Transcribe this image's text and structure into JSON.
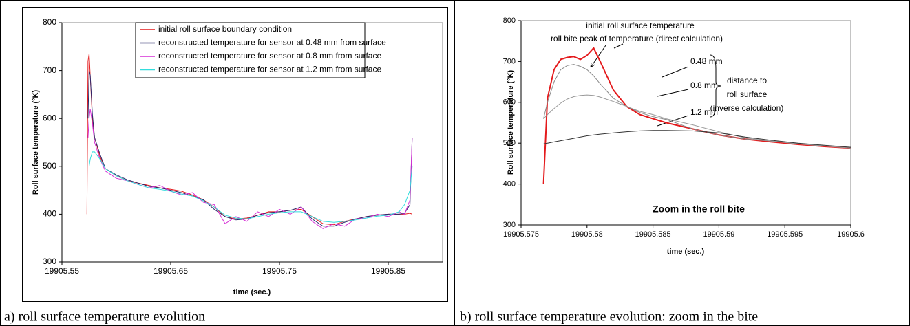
{
  "chart_data": [
    {
      "type": "line",
      "caption": "a) roll surface temperature evolution",
      "x_label": "time (sec.)",
      "y_label": "Roll surface temperature (°K)",
      "xlim": [
        19905.55,
        19905.9
      ],
      "xticks": [
        19905.55,
        19905.65,
        19905.75,
        19905.85
      ],
      "ylim": [
        300,
        800
      ],
      "yticks": [
        300,
        400,
        500,
        600,
        700,
        800
      ],
      "grid": false,
      "legend": "top",
      "x": [
        19905.573,
        19905.574,
        19905.575,
        19905.576,
        19905.578,
        19905.58,
        19905.585,
        19905.59,
        19905.6,
        19905.61,
        19905.62,
        19905.63,
        19905.64,
        19905.65,
        19905.66,
        19905.67,
        19905.68,
        19905.69,
        19905.7,
        19905.71,
        19905.72,
        19905.73,
        19905.74,
        19905.75,
        19905.76,
        19905.77,
        19905.78,
        19905.79,
        19905.8,
        19905.81,
        19905.82,
        19905.83,
        19905.84,
        19905.85,
        19905.86,
        19905.865,
        19905.87,
        19905.872
      ],
      "series": [
        {
          "name": "initial roll surface boundary condition",
          "color": "#e41a1c",
          "values": [
            400,
            720,
            735,
            690,
            600,
            560,
            520,
            495,
            480,
            470,
            465,
            460,
            455,
            452,
            448,
            440,
            430,
            415,
            395,
            390,
            392,
            398,
            405,
            405,
            408,
            410,
            395,
            380,
            378,
            385,
            390,
            395,
            398,
            400,
            400,
            400,
            402,
            400
          ]
        },
        {
          "name": "reconstructed temperature for sensor at 0.48 mm from surface",
          "color": "#2a2a6e",
          "values": [
            null,
            600,
            700,
            690,
            610,
            560,
            525,
            495,
            482,
            472,
            465,
            458,
            455,
            450,
            445,
            438,
            430,
            410,
            395,
            388,
            390,
            398,
            403,
            405,
            408,
            415,
            390,
            375,
            375,
            383,
            390,
            395,
            398,
            400,
            400,
            402,
            420,
            560
          ]
        },
        {
          "name": "reconstructed temperature for sensor at 0.8 mm from surface",
          "color": "#d62fd6",
          "values": [
            null,
            560,
            600,
            620,
            590,
            550,
            515,
            490,
            475,
            470,
            462,
            455,
            460,
            448,
            440,
            445,
            425,
            420,
            380,
            395,
            385,
            405,
            395,
            410,
            400,
            415,
            385,
            370,
            380,
            375,
            390,
            392,
            400,
            395,
            405,
            400,
            430,
            560
          ]
        },
        {
          "name": "reconstructed temperature for sensor at 1.2 mm from surface",
          "color": "#33dddd",
          "values": [
            null,
            null,
            500,
            515,
            530,
            530,
            515,
            495,
            480,
            470,
            462,
            455,
            452,
            448,
            442,
            438,
            428,
            415,
            398,
            392,
            390,
            395,
            400,
            403,
            405,
            405,
            395,
            385,
            383,
            385,
            388,
            392,
            396,
            398,
            405,
            420,
            450,
            500
          ]
        }
      ]
    },
    {
      "type": "line",
      "caption": "b) roll surface temperature evolution: zoom in the bite",
      "x_label": "time (sec.)",
      "y_label": "Roll surface temperature (°K)",
      "xlim": [
        19905.575,
        19905.6
      ],
      "xticks": [
        19905.575,
        19905.58,
        19905.585,
        19905.59,
        19905.595,
        19905.6
      ],
      "ylim": [
        300,
        800
      ],
      "yticks": [
        300,
        400,
        500,
        600,
        700,
        800
      ],
      "grid": false,
      "annotations": [
        "roll bite peak of temperature (direct calculation)",
        "distance to",
        "roll surface",
        "(inverse calculation)",
        "Zoom in the roll bite"
      ],
      "x": [
        19905.5767,
        19905.577,
        19905.5775,
        19905.578,
        19905.5785,
        19905.579,
        19905.5795,
        19905.58,
        19905.5805,
        19905.581,
        19905.582,
        19905.583,
        19905.584,
        19905.585,
        19905.586,
        19905.588,
        19905.59,
        19905.592,
        19905.594,
        19905.596,
        19905.598,
        19905.6
      ],
      "series": [
        {
          "name": "initial roll surface temperature",
          "color": "#e41a1c",
          "values": [
            400,
            610,
            680,
            705,
            710,
            712,
            705,
            715,
            733,
            700,
            630,
            590,
            570,
            560,
            550,
            535,
            520,
            510,
            503,
            497,
            492,
            488
          ]
        },
        {
          "name": "0.48 mm",
          "color": "#888888",
          "values": [
            560,
            600,
            650,
            680,
            690,
            693,
            688,
            680,
            665,
            645,
            610,
            590,
            575,
            565,
            558,
            535,
            520,
            510,
            505,
            499,
            493,
            488
          ]
        },
        {
          "name": "0.8 mm",
          "color": "#999999",
          "values": [
            560,
            570,
            585,
            598,
            608,
            614,
            617,
            618,
            617,
            613,
            602,
            590,
            578,
            570,
            560,
            545,
            528,
            513,
            505,
            498,
            493,
            488
          ]
        },
        {
          "name": "1.2 mm",
          "color": "#333333",
          "values": [
            498,
            500,
            503,
            506,
            509,
            512,
            515,
            518,
            520,
            522,
            525,
            528,
            530,
            531,
            531,
            530,
            525,
            515,
            507,
            500,
            495,
            490
          ]
        }
      ]
    }
  ]
}
